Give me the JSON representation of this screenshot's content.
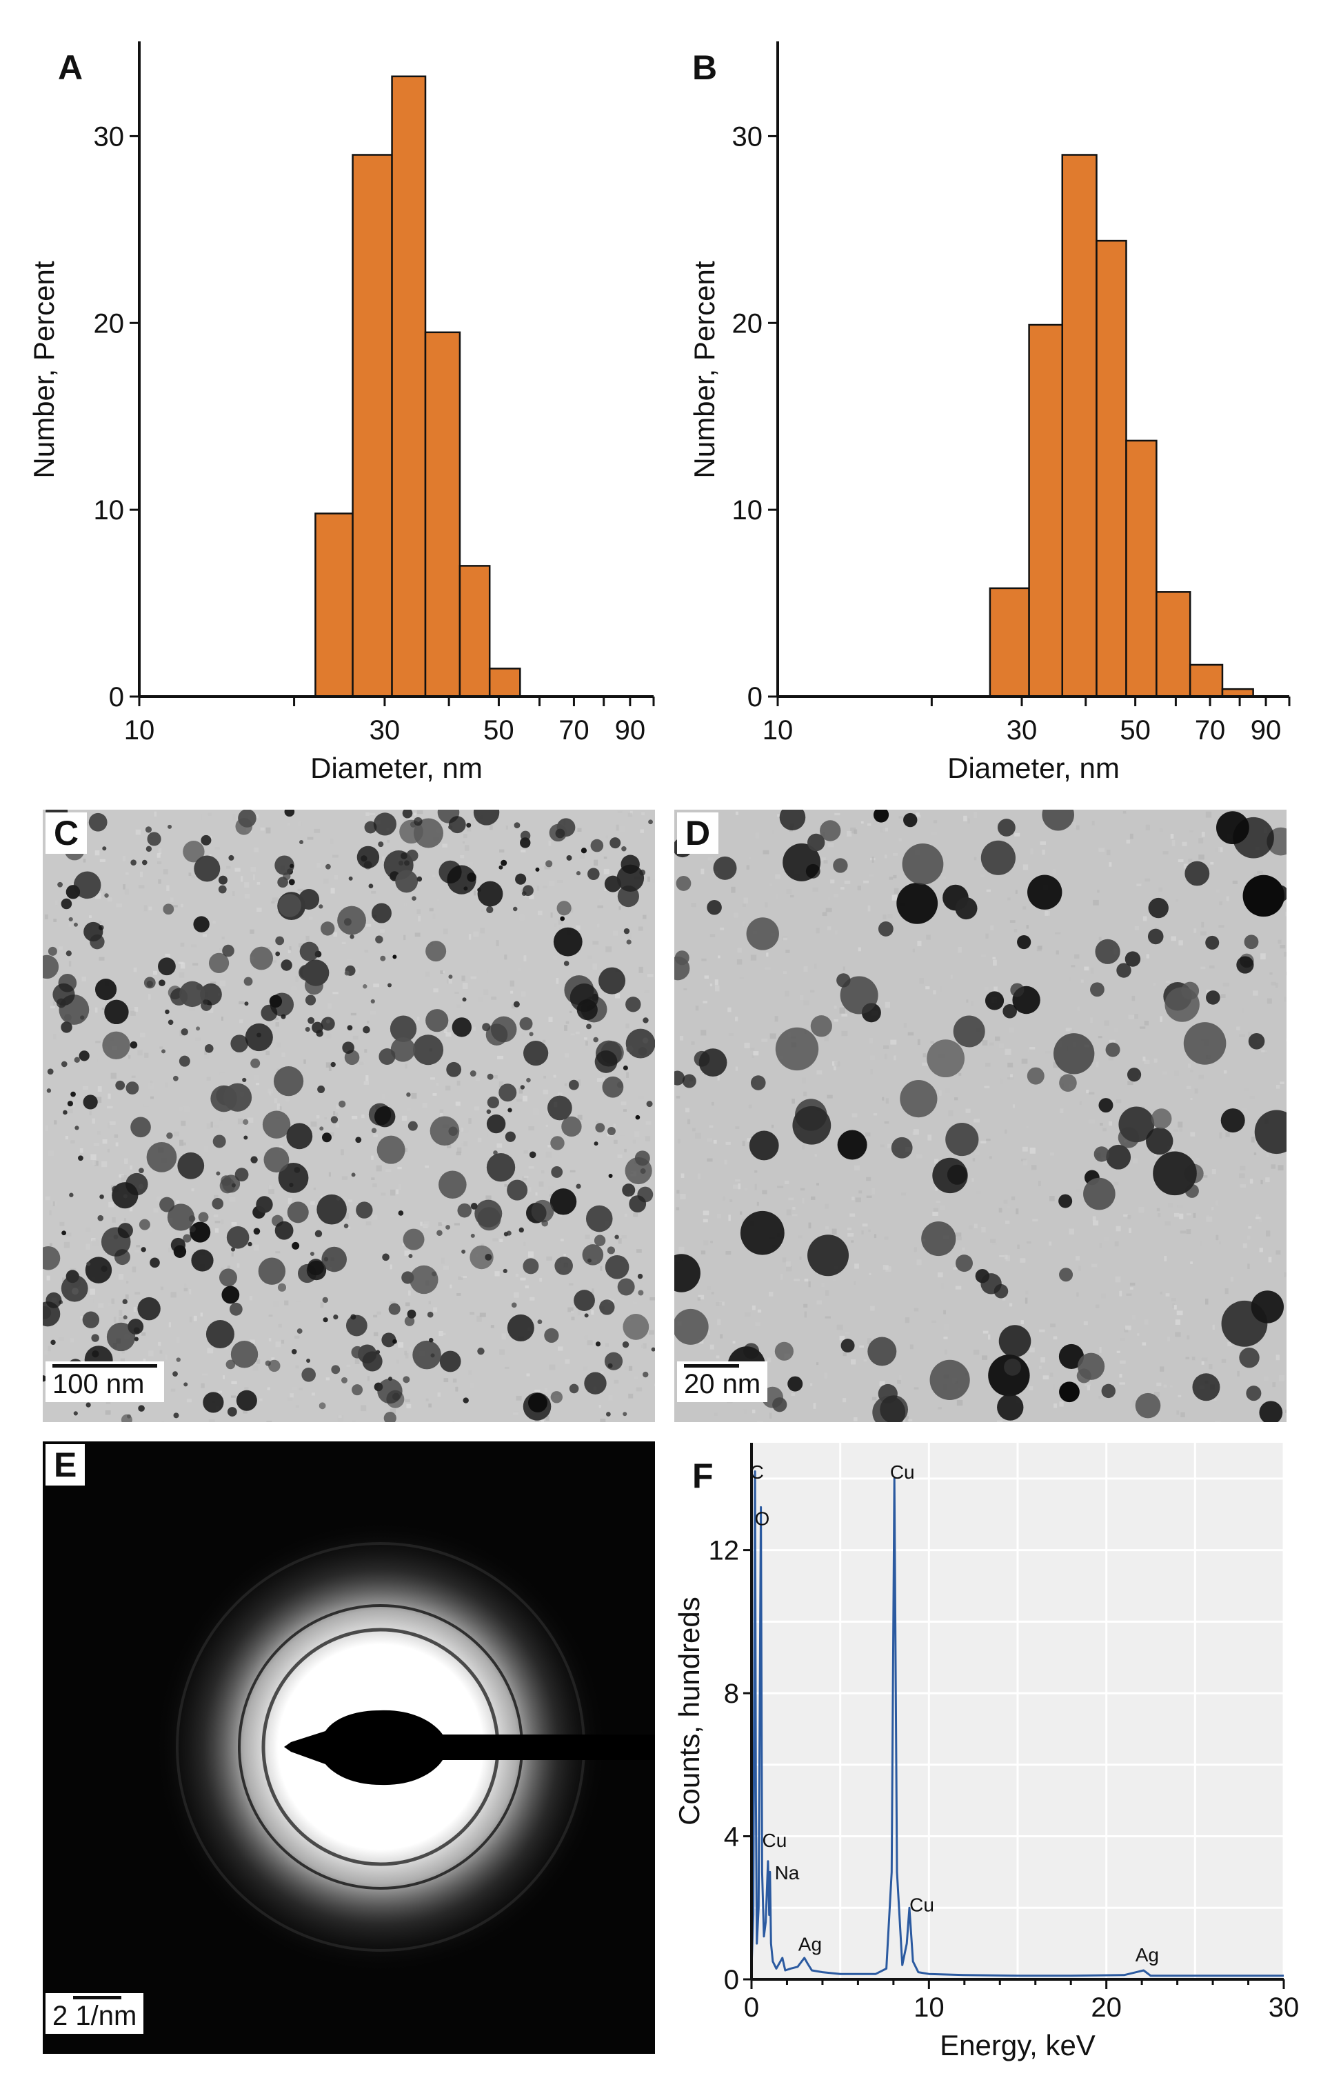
{
  "panels": {
    "A": "A",
    "B": "B",
    "C": "C",
    "D": "D",
    "E": "E",
    "F": "F"
  },
  "scalebars": {
    "C": "100 nm",
    "D": "20 nm",
    "E": "2 1/nm"
  },
  "chart_data": [
    {
      "panel": "A",
      "type": "bar",
      "xlabel": "Diameter, nm",
      "ylabel": "Number, Percent",
      "xscale": "log",
      "xlim": [
        10,
        100
      ],
      "ylim": [
        0,
        35
      ],
      "xticks": [
        10,
        30,
        50,
        70,
        90
      ],
      "yticks": [
        0,
        10,
        20,
        30
      ],
      "bins": [
        {
          "from": 22,
          "to": 26,
          "value": 9.8
        },
        {
          "from": 26,
          "to": 31,
          "value": 29.0
        },
        {
          "from": 31,
          "to": 36,
          "value": 33.2
        },
        {
          "from": 36,
          "to": 42,
          "value": 19.5
        },
        {
          "from": 42,
          "to": 48,
          "value": 7.0
        },
        {
          "from": 48,
          "to": 55,
          "value": 1.5
        }
      ],
      "bar_color": "#e07b2e"
    },
    {
      "panel": "B",
      "type": "bar",
      "xlabel": "Diameter, nm",
      "ylabel": "Number, Percent",
      "xscale": "log",
      "xlim": [
        10,
        100
      ],
      "ylim": [
        0,
        35
      ],
      "xticks": [
        10,
        30,
        50,
        70,
        90
      ],
      "yticks": [
        0,
        10,
        20,
        30
      ],
      "bins": [
        {
          "from": 26,
          "to": 31,
          "value": 5.8
        },
        {
          "from": 31,
          "to": 36,
          "value": 19.9
        },
        {
          "from": 36,
          "to": 42,
          "value": 29.0
        },
        {
          "from": 42,
          "to": 48,
          "value": 24.4
        },
        {
          "from": 48,
          "to": 55,
          "value": 13.7
        },
        {
          "from": 55,
          "to": 64,
          "value": 5.6
        },
        {
          "from": 64,
          "to": 74,
          "value": 1.7
        },
        {
          "from": 74,
          "to": 85,
          "value": 0.4
        }
      ],
      "bar_color": "#e07b2e"
    },
    {
      "panel": "F",
      "type": "line",
      "xlabel": "Energy, keV",
      "ylabel": "Counts, hundreds",
      "xlim": [
        0,
        30
      ],
      "ylim": [
        0,
        15
      ],
      "xticks": [
        0,
        10,
        20,
        30
      ],
      "yticks": [
        0,
        4,
        8,
        12
      ],
      "grid": true,
      "line_color": "#2b5aa0",
      "background": "#efefef",
      "x": [
        0.0,
        0.1,
        0.2,
        0.25,
        0.3,
        0.4,
        0.53,
        0.6,
        0.7,
        0.8,
        0.93,
        1.0,
        1.04,
        1.1,
        1.2,
        1.4,
        1.74,
        1.9,
        2.2,
        2.6,
        2.98,
        3.15,
        3.4,
        4.0,
        5.0,
        6.0,
        7.0,
        7.6,
        7.9,
        8.05,
        8.2,
        8.5,
        8.75,
        8.9,
        9.1,
        9.4,
        10.0,
        12.0,
        15.0,
        18.0,
        21.0,
        22.1,
        22.5,
        25.0,
        28.0,
        30.0
      ],
      "y": [
        0.3,
        1.8,
        14.2,
        5.0,
        1.0,
        2.0,
        13.2,
        3.0,
        1.2,
        1.6,
        3.3,
        1.8,
        3.0,
        1.0,
        0.5,
        0.3,
        0.6,
        0.25,
        0.3,
        0.35,
        0.6,
        0.45,
        0.25,
        0.2,
        0.15,
        0.15,
        0.15,
        0.3,
        3.0,
        14.0,
        3.0,
        0.4,
        1.0,
        2.0,
        0.5,
        0.2,
        0.15,
        0.12,
        0.1,
        0.1,
        0.12,
        0.25,
        0.1,
        0.1,
        0.1,
        0.1
      ],
      "annotations": [
        {
          "label": "C",
          "x": 0.3,
          "y": 14.0
        },
        {
          "label": "O",
          "x": 0.6,
          "y": 12.7
        },
        {
          "label": "Cu",
          "x": 8.5,
          "y": 14.0
        },
        {
          "label": "Cu",
          "x": 1.3,
          "y": 3.7
        },
        {
          "label": "Na",
          "x": 2.0,
          "y": 2.8
        },
        {
          "label": "Cu",
          "x": 9.6,
          "y": 1.9
        },
        {
          "label": "Ag",
          "x": 3.3,
          "y": 0.8
        },
        {
          "label": "Ag",
          "x": 22.3,
          "y": 0.5
        }
      ]
    }
  ]
}
